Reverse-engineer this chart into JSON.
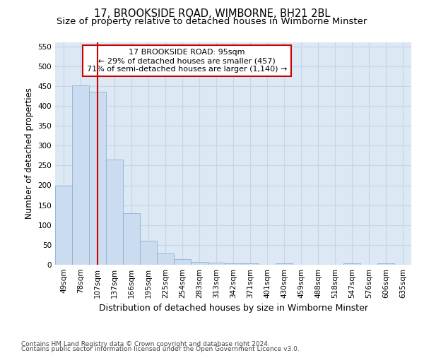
{
  "title_line1": "17, BROOKSIDE ROAD, WIMBORNE, BH21 2BL",
  "title_line2": "Size of property relative to detached houses in Wimborne Minster",
  "xlabel": "Distribution of detached houses by size in Wimborne Minster",
  "ylabel": "Number of detached properties",
  "footnote_line1": "Contains HM Land Registry data © Crown copyright and database right 2024.",
  "footnote_line2": "Contains public sector information licensed under the Open Government Licence v3.0.",
  "categories": [
    "49sqm",
    "78sqm",
    "107sqm",
    "137sqm",
    "166sqm",
    "195sqm",
    "225sqm",
    "254sqm",
    "283sqm",
    "313sqm",
    "342sqm",
    "371sqm",
    "401sqm",
    "430sqm",
    "459sqm",
    "488sqm",
    "518sqm",
    "547sqm",
    "576sqm",
    "606sqm",
    "635sqm"
  ],
  "values": [
    200,
    452,
    435,
    265,
    130,
    60,
    29,
    15,
    7,
    5,
    4,
    4,
    0,
    4,
    0,
    0,
    0,
    4,
    0,
    4,
    0
  ],
  "bar_color": "#ccdcf0",
  "bar_edge_color": "#8ab0d8",
  "vline_x": 2.0,
  "vline_color": "#cc0000",
  "annotation_text": "17 BROOKSIDE ROAD: 95sqm\n← 29% of detached houses are smaller (457)\n71% of semi-detached houses are larger (1,140) →",
  "annotation_box_color": "#ffffff",
  "annotation_box_edge": "#cc0000",
  "ylim": [
    0,
    560
  ],
  "yticks": [
    0,
    50,
    100,
    150,
    200,
    250,
    300,
    350,
    400,
    450,
    500,
    550
  ],
  "grid_color": "#c8d4e8",
  "background_color": "#dce8f4",
  "title_fontsize": 10.5,
  "subtitle_fontsize": 9.5,
  "ylabel_fontsize": 8.5,
  "xlabel_fontsize": 9,
  "tick_fontsize": 7.5,
  "annot_fontsize": 8,
  "footnote_fontsize": 6.5
}
